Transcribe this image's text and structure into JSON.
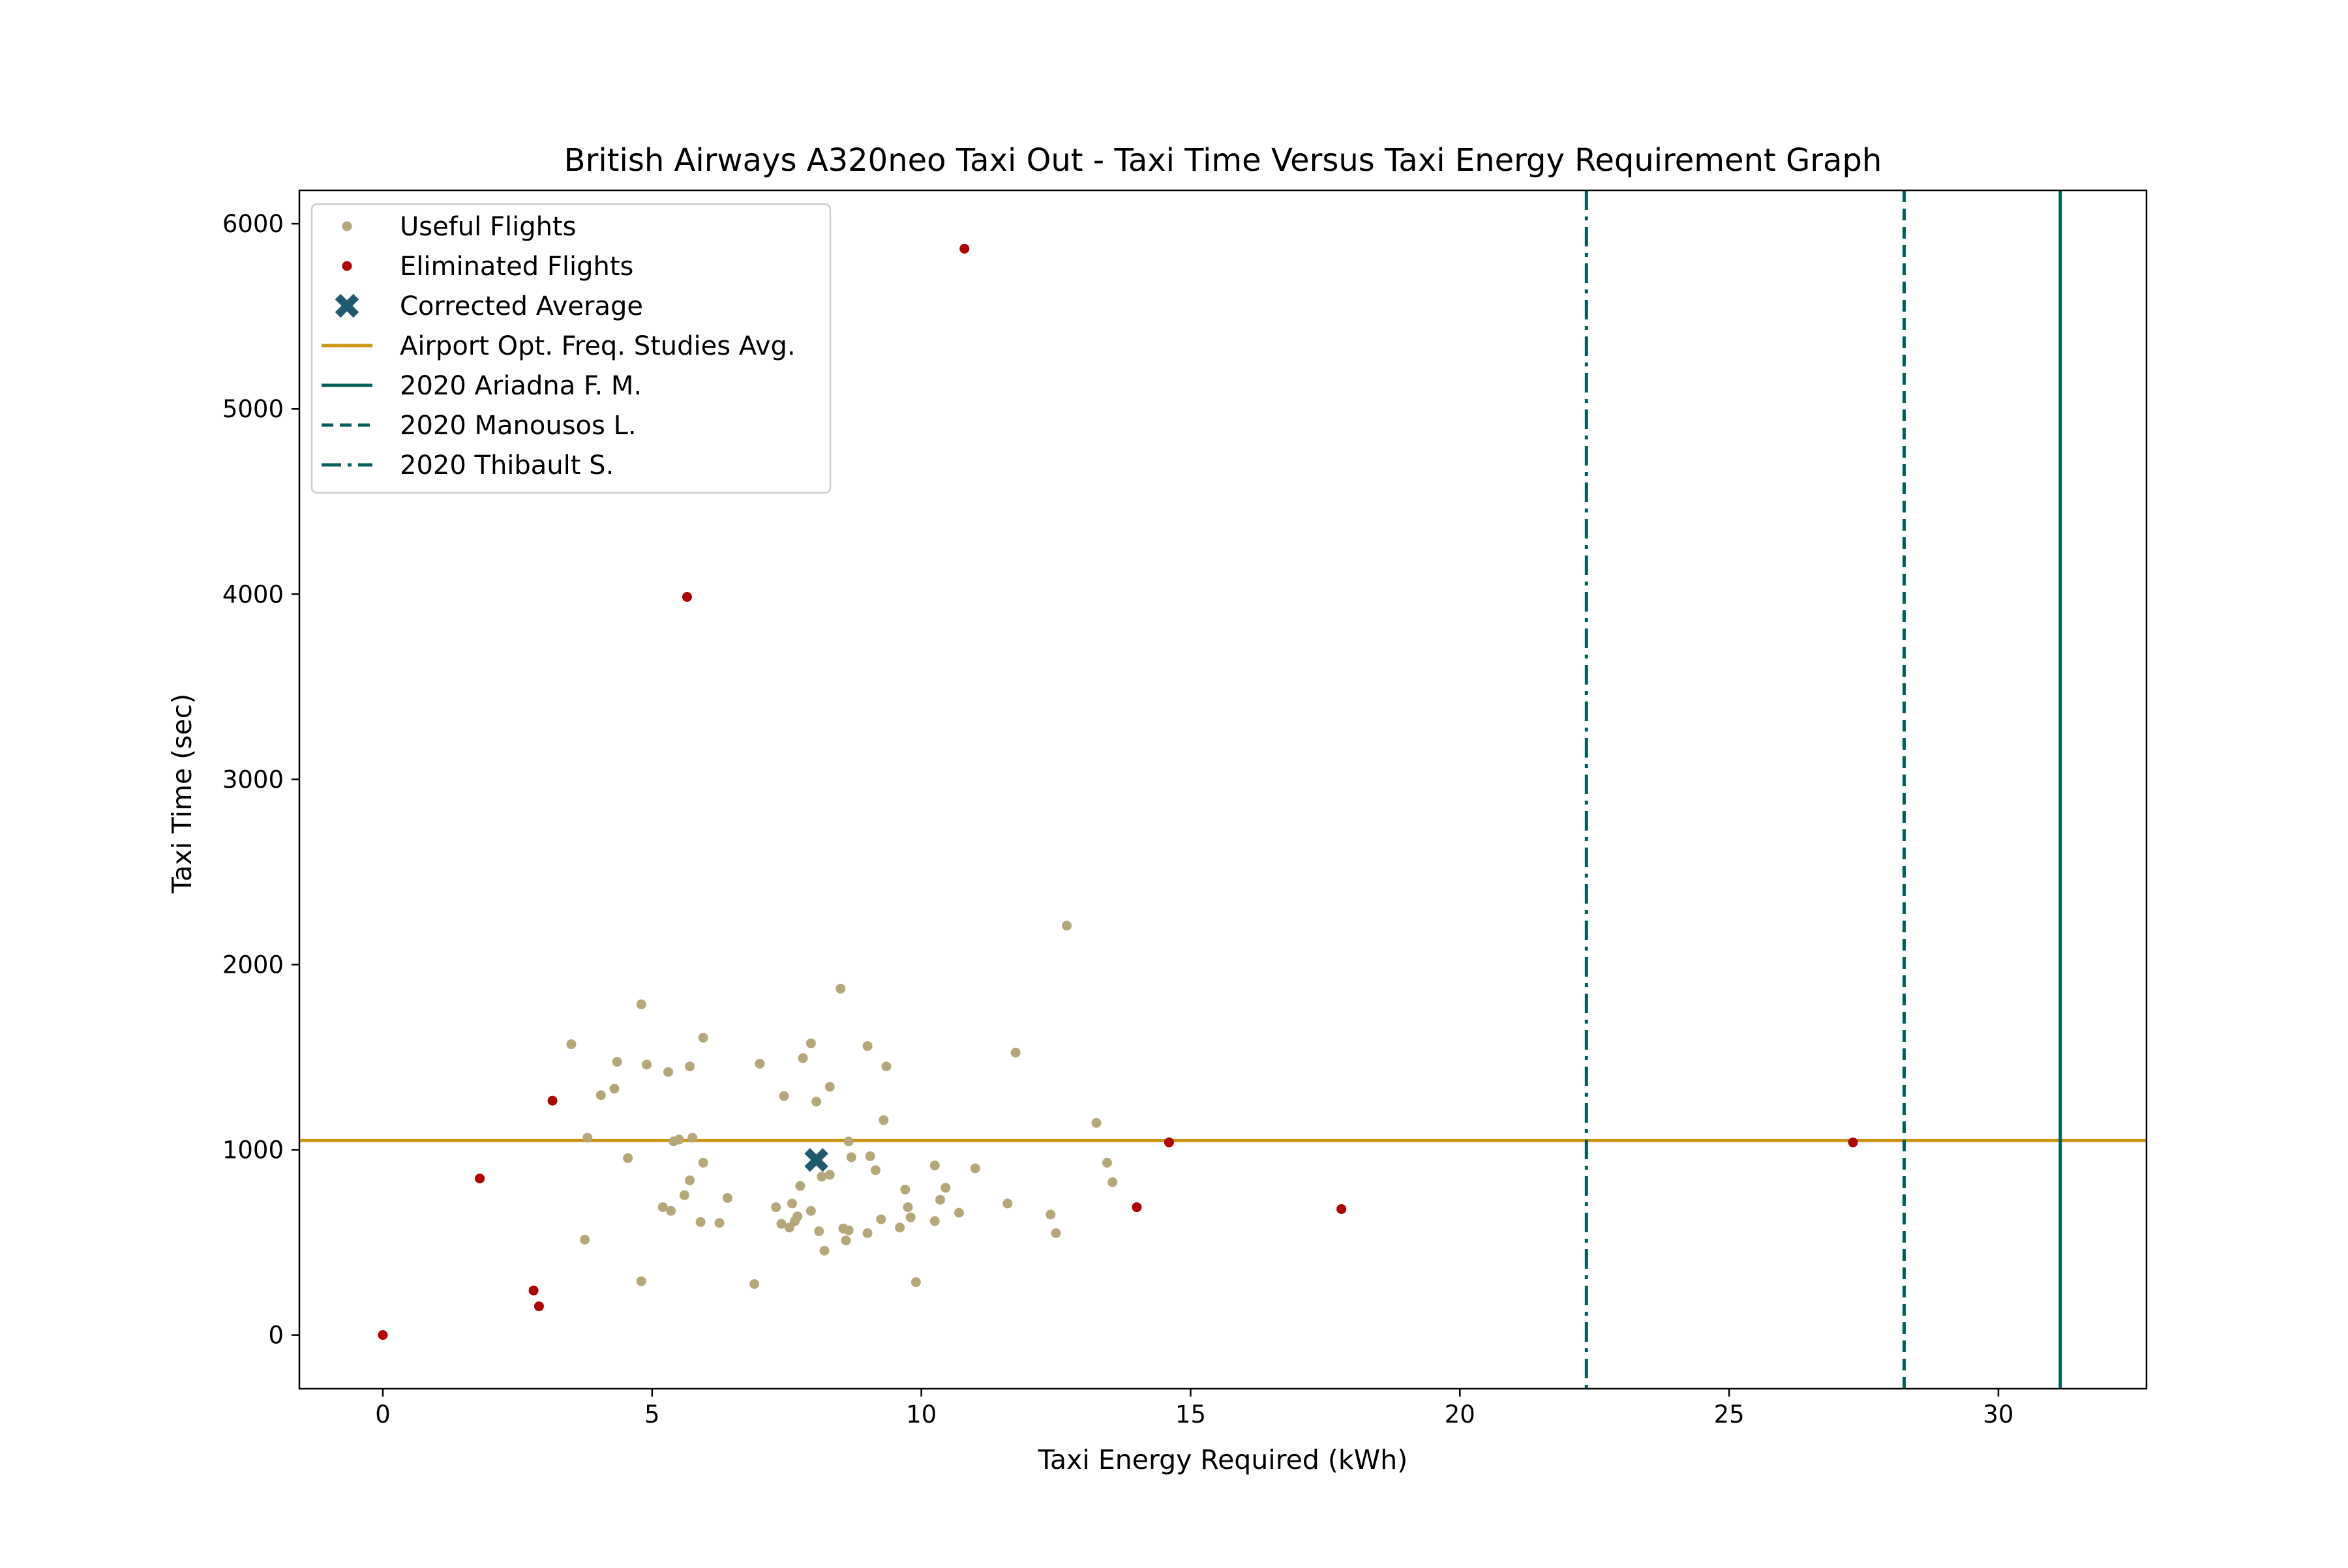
{
  "chart_data": {
    "type": "scatter",
    "title": "British Airways A320neo Taxi Out - Taxi Time Versus Taxi Energy Requirement Graph",
    "xlabel": "Taxi Energy Required (kWh)",
    "ylabel": "Taxi Time (sec)",
    "xlim": [
      -1.55,
      32.75
    ],
    "ylim": [
      -290,
      6180
    ],
    "xticks": [
      0,
      5,
      10,
      15,
      20,
      25,
      30
    ],
    "yticks": [
      0,
      1000,
      2000,
      3000,
      4000,
      5000,
      6000
    ],
    "grid": false,
    "legend_position": "top-left",
    "colors": {
      "useful": "#b5a77a",
      "eliminated": "#b00000",
      "average": "#1f5a6e",
      "airport_avg": "#cc9414",
      "ref_lines": "#005f5a",
      "axes": "#000000"
    },
    "series": [
      {
        "name": "Useful Flights",
        "marker": "dot",
        "color": "#b5a77a",
        "points": [
          [
            3.5,
            1570
          ],
          [
            4.35,
            1475
          ],
          [
            4.8,
            1785
          ],
          [
            4.9,
            1460
          ],
          [
            5.3,
            1420
          ],
          [
            5.7,
            1450
          ],
          [
            5.95,
            1605
          ],
          [
            4.05,
            1295
          ],
          [
            4.3,
            1330
          ],
          [
            3.8,
            1065
          ],
          [
            5.4,
            1045
          ],
          [
            5.5,
            1055
          ],
          [
            5.75,
            1065
          ],
          [
            4.55,
            955
          ],
          [
            5.95,
            930
          ],
          [
            5.7,
            835
          ],
          [
            5.6,
            755
          ],
          [
            5.2,
            690
          ],
          [
            5.35,
            670
          ],
          [
            5.9,
            610
          ],
          [
            6.25,
            605
          ],
          [
            6.4,
            740
          ],
          [
            3.75,
            515
          ],
          [
            4.8,
            290
          ],
          [
            6.9,
            275
          ],
          [
            7.0,
            1465
          ],
          [
            7.45,
            1290
          ],
          [
            7.8,
            1495
          ],
          [
            7.95,
            1575
          ],
          [
            8.05,
            1260
          ],
          [
            8.3,
            1340
          ],
          [
            8.5,
            1870
          ],
          [
            7.3,
            690
          ],
          [
            7.6,
            710
          ],
          [
            7.7,
            640
          ],
          [
            7.65,
            615
          ],
          [
            7.75,
            805
          ],
          [
            7.95,
            670
          ],
          [
            8.15,
            855
          ],
          [
            8.3,
            865
          ],
          [
            8.65,
            1045
          ],
          [
            8.7,
            960
          ],
          [
            9.0,
            1560
          ],
          [
            9.05,
            965
          ],
          [
            9.15,
            890
          ],
          [
            9.3,
            1160
          ],
          [
            9.35,
            1450
          ],
          [
            7.4,
            600
          ],
          [
            7.55,
            580
          ],
          [
            8.1,
            560
          ],
          [
            8.2,
            455
          ],
          [
            8.55,
            575
          ],
          [
            8.6,
            510
          ],
          [
            8.65,
            565
          ],
          [
            9.0,
            550
          ],
          [
            9.25,
            625
          ],
          [
            9.6,
            580
          ],
          [
            9.7,
            785
          ],
          [
            9.75,
            690
          ],
          [
            9.8,
            635
          ],
          [
            9.9,
            285
          ],
          [
            10.25,
            915
          ],
          [
            10.25,
            615
          ],
          [
            10.35,
            730
          ],
          [
            10.45,
            795
          ],
          [
            10.7,
            660
          ],
          [
            11.0,
            900
          ],
          [
            11.6,
            710
          ],
          [
            11.75,
            1525
          ],
          [
            12.4,
            650
          ],
          [
            12.5,
            550
          ],
          [
            12.7,
            2210
          ],
          [
            13.25,
            1145
          ],
          [
            13.45,
            930
          ],
          [
            13.55,
            825
          ]
        ]
      },
      {
        "name": "Eliminated Flights",
        "marker": "dot",
        "color": "#b00000",
        "points": [
          [
            0.0,
            0
          ],
          [
            1.8,
            845
          ],
          [
            2.8,
            240
          ],
          [
            2.9,
            155
          ],
          [
            3.15,
            1265
          ],
          [
            5.65,
            3985
          ],
          [
            10.8,
            5865
          ],
          [
            14.0,
            690
          ],
          [
            14.6,
            1040
          ],
          [
            17.8,
            680
          ],
          [
            27.3,
            1040
          ]
        ]
      },
      {
        "name": "Corrected Average",
        "marker": "x",
        "color": "#1f5a6e",
        "points": [
          [
            8.05,
            945
          ]
        ]
      }
    ],
    "lines": [
      {
        "name": "Airport Opt. Freq. Studies Avg.",
        "orientation": "horizontal",
        "value": 1050,
        "style": "solid",
        "color": "#cc9414"
      },
      {
        "name": "2020 Ariadna F. M.",
        "orientation": "vertical",
        "value": 31.15,
        "style": "solid",
        "color": "#005f5a"
      },
      {
        "name": "2020 Manousos L.",
        "orientation": "vertical",
        "value": 28.25,
        "style": "dashed",
        "color": "#005f5a"
      },
      {
        "name": "2020 Thibault S.",
        "orientation": "vertical",
        "value": 22.35,
        "style": "dashdot",
        "color": "#005f5a"
      }
    ],
    "legend": [
      {
        "label": "Useful Flights",
        "kind": "dot",
        "color": "#b5a77a"
      },
      {
        "label": "Eliminated Flights",
        "kind": "dot",
        "color": "#b00000"
      },
      {
        "label": "Corrected Average",
        "kind": "x",
        "color": "#1f5a6e"
      },
      {
        "label": "Airport Opt. Freq. Studies Avg.",
        "kind": "line",
        "style": "solid",
        "color": "#cc9414"
      },
      {
        "label": "2020 Ariadna F. M.",
        "kind": "line",
        "style": "solid",
        "color": "#005f5a"
      },
      {
        "label": "2020 Manousos L.",
        "kind": "line",
        "style": "dashed",
        "color": "#005f5a"
      },
      {
        "label": "2020 Thibault S.",
        "kind": "line",
        "style": "dashdot",
        "color": "#005f5a"
      }
    ]
  }
}
